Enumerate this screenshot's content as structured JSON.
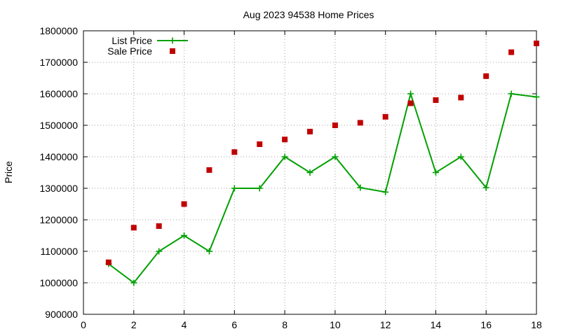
{
  "chart_data": {
    "type": "line",
    "title": "Aug 2023 94538 Home Prices",
    "xlabel": "",
    "ylabel": "Price",
    "xlim": [
      0,
      18
    ],
    "ylim": [
      900000,
      1800000
    ],
    "x_ticks": [
      0,
      2,
      4,
      6,
      8,
      10,
      12,
      14,
      16,
      18
    ],
    "y_ticks": [
      900000,
      1000000,
      1100000,
      1200000,
      1300000,
      1400000,
      1500000,
      1600000,
      1700000,
      1800000
    ],
    "grid": true,
    "legend_position": "top-left",
    "series": [
      {
        "name": "List Price",
        "style": "line-plus",
        "color": "#00a000",
        "points": [
          [
            1,
            1060000
          ],
          [
            2,
            1000000
          ],
          [
            3,
            1100000
          ],
          [
            4,
            1150000
          ],
          [
            5,
            1100000
          ],
          [
            6,
            1300000
          ],
          [
            7,
            1300000
          ],
          [
            8,
            1400000
          ],
          [
            9,
            1350000
          ],
          [
            10,
            1400000
          ],
          [
            11,
            1302000
          ],
          [
            12,
            1288000
          ],
          [
            13,
            1600000
          ],
          [
            14,
            1350000
          ],
          [
            15,
            1400000
          ],
          [
            16,
            1302000
          ],
          [
            17,
            1600000
          ],
          [
            18,
            1590000
          ]
        ]
      },
      {
        "name": "Sale Price",
        "style": "square",
        "color": "#c00000",
        "points": [
          [
            1,
            1065000
          ],
          [
            2,
            1175000
          ],
          [
            3,
            1180000
          ],
          [
            4,
            1250000
          ],
          [
            5,
            1358000
          ],
          [
            6,
            1415000
          ],
          [
            7,
            1440000
          ],
          [
            8,
            1455000
          ],
          [
            9,
            1480000
          ],
          [
            10,
            1500000
          ],
          [
            11,
            1508000
          ],
          [
            12,
            1527000
          ],
          [
            13,
            1570000
          ],
          [
            14,
            1580000
          ],
          [
            15,
            1588000
          ],
          [
            16,
            1656000
          ],
          [
            17,
            1732000
          ],
          [
            18,
            1760000
          ]
        ]
      }
    ]
  }
}
